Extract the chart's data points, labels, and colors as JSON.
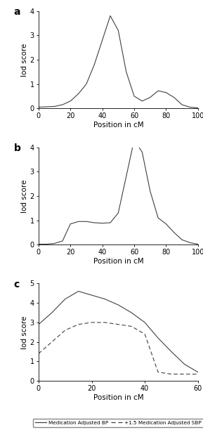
{
  "panel_a": {
    "x": [
      0,
      10,
      15,
      20,
      25,
      30,
      35,
      40,
      45,
      50,
      55,
      60,
      65,
      70,
      75,
      80,
      85,
      90,
      95,
      100
    ],
    "y": [
      0.05,
      0.08,
      0.15,
      0.3,
      0.6,
      1.0,
      1.8,
      2.8,
      3.8,
      3.2,
      1.5,
      0.5,
      0.3,
      0.45,
      0.72,
      0.65,
      0.45,
      0.15,
      0.05,
      0.02
    ],
    "xlim": [
      0,
      100
    ],
    "ylim": [
      0,
      4
    ],
    "yticks": [
      0,
      1,
      2,
      3,
      4
    ],
    "xticks": [
      0,
      20,
      40,
      60,
      80,
      100
    ],
    "xlabel": "Position in cM",
    "ylabel": "lod score",
    "label": "a"
  },
  "panel_b": {
    "x": [
      0,
      5,
      10,
      15,
      20,
      25,
      30,
      35,
      40,
      45,
      50,
      55,
      60,
      65,
      70,
      75,
      80,
      85,
      90,
      95,
      100
    ],
    "y": [
      0.02,
      0.02,
      0.05,
      0.15,
      0.85,
      0.95,
      0.95,
      0.9,
      0.88,
      0.9,
      1.3,
      2.8,
      4.3,
      3.8,
      2.2,
      1.1,
      0.85,
      0.5,
      0.2,
      0.08,
      0.02
    ],
    "xlim": [
      0,
      100
    ],
    "ylim": [
      0,
      4
    ],
    "yticks": [
      0,
      1,
      2,
      3,
      4
    ],
    "xticks": [
      0,
      20,
      40,
      60,
      80,
      100
    ],
    "xlabel": "Position in cM",
    "ylabel": "lod score",
    "label": "b"
  },
  "panel_c": {
    "x_solid": [
      0,
      5,
      10,
      15,
      20,
      25,
      30,
      35,
      40,
      45,
      50,
      55,
      60
    ],
    "y_solid": [
      2.9,
      3.5,
      4.2,
      4.6,
      4.4,
      4.2,
      3.9,
      3.5,
      3.0,
      2.2,
      1.5,
      0.85,
      0.45
    ],
    "x_dashed": [
      0,
      5,
      10,
      15,
      20,
      25,
      30,
      35,
      40,
      45,
      50,
      55,
      60
    ],
    "y_dashed": [
      1.4,
      2.0,
      2.6,
      2.9,
      3.0,
      3.0,
      2.9,
      2.8,
      2.4,
      0.45,
      0.35,
      0.35,
      0.35
    ],
    "xlim": [
      0,
      60
    ],
    "ylim": [
      0,
      5
    ],
    "yticks": [
      0,
      1,
      2,
      3,
      4,
      5
    ],
    "xticks": [
      0,
      20,
      40,
      60
    ],
    "xlabel": "Position in cM",
    "ylabel": "lod score",
    "label": "c",
    "legend_solid": "Medication Adjusted BP",
    "legend_dashed": "+1.5 Medication Adjusted SBP"
  },
  "line_color": "#404040",
  "tick_fontsize": 7,
  "label_fontsize": 8,
  "axis_label_fontsize": 7.5,
  "panel_label_fontsize": 10
}
